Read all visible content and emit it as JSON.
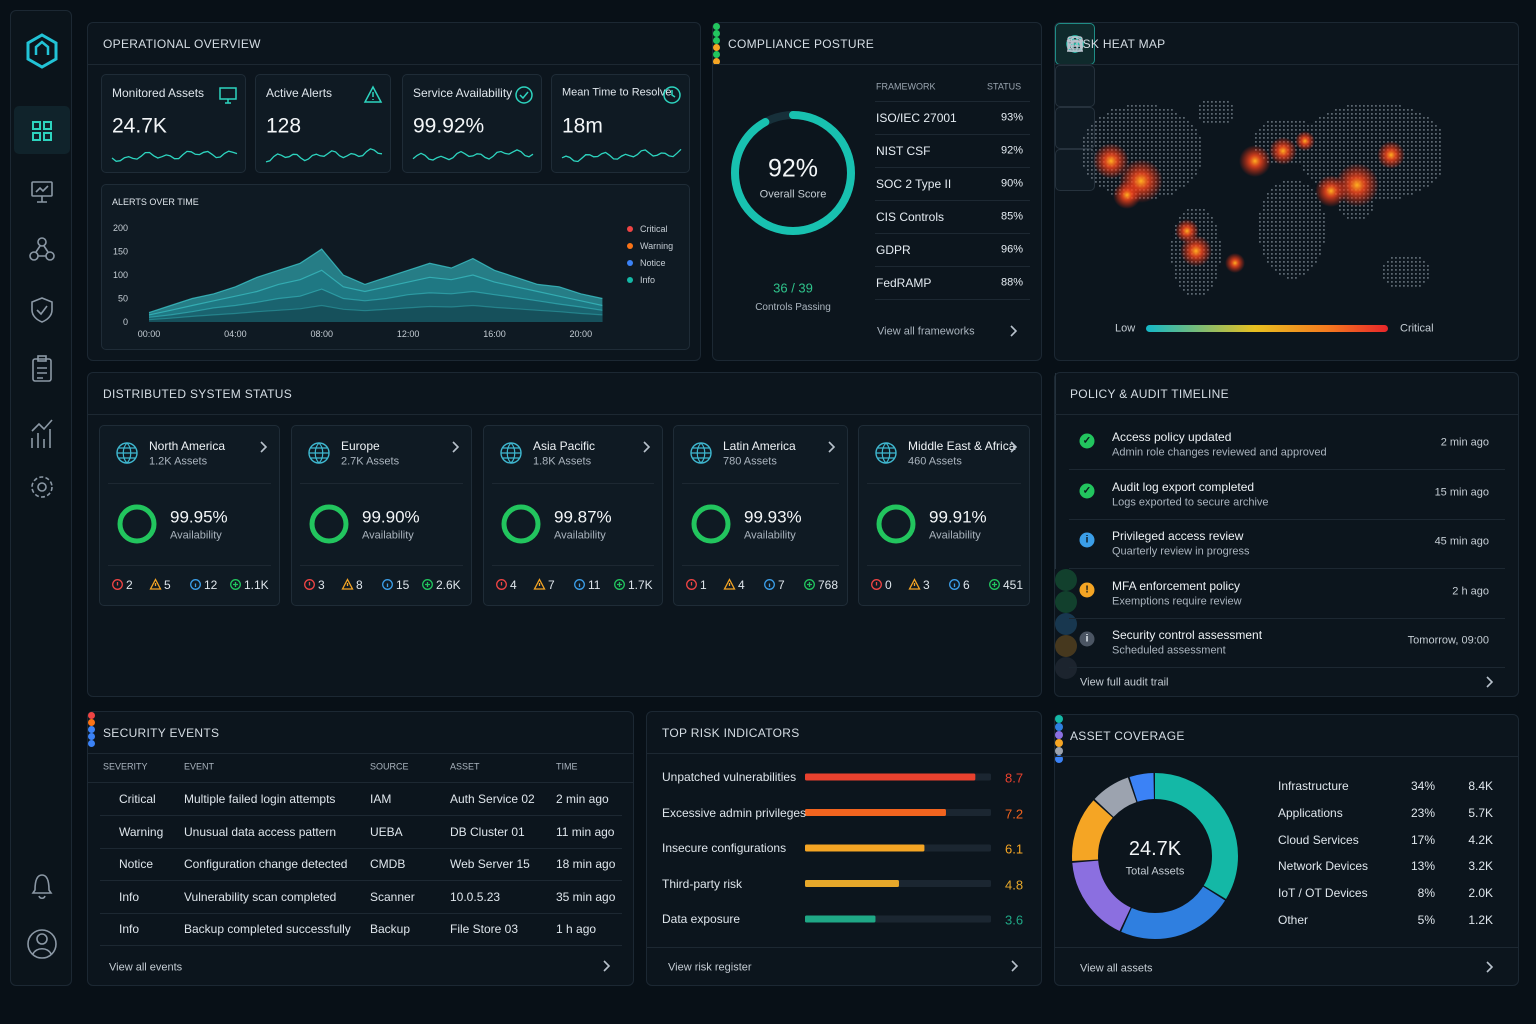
{
  "operational_overview": {
    "title": "OPERATIONAL OVERVIEW",
    "kpis": [
      {
        "label": "Monitored Assets",
        "value": "24.7K"
      },
      {
        "label": "Active Alerts",
        "value": "128"
      },
      {
        "label": "Service Availability",
        "value": "99.92%"
      },
      {
        "label": "Mean Time to Resolve",
        "value": "18m"
      }
    ],
    "alerts_chart": {
      "type": "area",
      "title": "ALERTS OVER TIME",
      "x": [
        0,
        1,
        2,
        3,
        4,
        5,
        6,
        7,
        8,
        9,
        10,
        11,
        12,
        13,
        14,
        15,
        16,
        17,
        18,
        19,
        20,
        21
      ],
      "xlim": [
        0,
        22
      ],
      "xticks": [
        {
          "value": 0,
          "label": "00:00"
        },
        {
          "value": 4,
          "label": "04:00"
        },
        {
          "value": 8,
          "label": "08:00"
        },
        {
          "value": 12,
          "label": "12:00"
        },
        {
          "value": 16,
          "label": "16:00"
        },
        {
          "value": 20,
          "label": "20:00"
        }
      ],
      "ylim": [
        0,
        200
      ],
      "yticks": [
        0,
        50,
        100,
        150,
        200
      ],
      "series": [
        {
          "name": "Critical",
          "color": "#ef4444",
          "fill": "#2a8f98",
          "values": [
            20,
            35,
            50,
            60,
            75,
            95,
            110,
            125,
            155,
            100,
            80,
            95,
            110,
            125,
            115,
            135,
            110,
            95,
            80,
            75,
            60,
            50
          ]
        },
        {
          "name": "Warning",
          "color": "#f97316",
          "fill": "#1f7782",
          "values": [
            15,
            25,
            35,
            45,
            55,
            65,
            80,
            90,
            110,
            75,
            65,
            75,
            85,
            95,
            90,
            100,
            85,
            75,
            65,
            55,
            45,
            35
          ]
        },
        {
          "name": "Notice",
          "color": "#3b82f6",
          "fill": "#1a5f6c",
          "values": [
            10,
            15,
            22,
            30,
            35,
            42,
            50,
            55,
            70,
            50,
            45,
            50,
            58,
            62,
            60,
            65,
            58,
            52,
            45,
            38,
            32,
            25
          ]
        },
        {
          "name": "Info",
          "color": "#14b8a6",
          "fill": "#164c58",
          "values": [
            5,
            8,
            12,
            15,
            18,
            22,
            25,
            28,
            35,
            27,
            24,
            27,
            30,
            33,
            32,
            35,
            31,
            28,
            25,
            22,
            18,
            15
          ]
        }
      ]
    }
  },
  "compliance": {
    "title": "COMPLIANCE POSTURE",
    "score": 92,
    "score_label": "92%",
    "score_caption": "Overall Score",
    "controls": "36 / 39",
    "controls_caption": "Controls Passing",
    "headers": [
      "FRAMEWORK",
      "STATUS"
    ],
    "frameworks": [
      {
        "name": "ISO/IEC 27001",
        "status": "93%",
        "color": "#22c55e"
      },
      {
        "name": "NIST CSF",
        "status": "92%",
        "color": "#22c55e"
      },
      {
        "name": "SOC 2 Type II",
        "status": "90%",
        "color": "#22c55e"
      },
      {
        "name": "CIS Controls",
        "status": "85%",
        "color": "#f5a524"
      },
      {
        "name": "GDPR",
        "status": "96%",
        "color": "#22c55e"
      },
      {
        "name": "FedRAMP",
        "status": "88%",
        "color": "#f5a524"
      }
    ],
    "link": "View all frameworks"
  },
  "risk_heat_map": {
    "title": "RISK HEAT MAP",
    "legend_low": "Low",
    "legend_high": "Critical"
  },
  "distributed_status": {
    "title": "DISTRIBUTED SYSTEM STATUS",
    "regions": [
      {
        "name": "North America",
        "assets": "1.2K Assets",
        "availability": {
          "value": 99.95,
          "label": "99.95%"
        },
        "caption": "Availability",
        "counts": {
          "critical": 2,
          "warning": 5,
          "info": 12,
          "healthy": "1.1K"
        }
      },
      {
        "name": "Europe",
        "assets": "2.7K Assets",
        "availability": {
          "value": 99.9,
          "label": "99.90%"
        },
        "caption": "Availability",
        "counts": {
          "critical": 3,
          "warning": 8,
          "info": 15,
          "healthy": "2.6K"
        }
      },
      {
        "name": "Asia Pacific",
        "assets": "1.8K Assets",
        "availability": {
          "value": 99.87,
          "label": "99.87%"
        },
        "caption": "Availability",
        "counts": {
          "critical": 4,
          "warning": 7,
          "info": 11,
          "healthy": "1.7K"
        }
      },
      {
        "name": "Latin America",
        "assets": "780 Assets",
        "availability": {
          "value": 99.93,
          "label": "99.93%"
        },
        "caption": "Availability",
        "counts": {
          "critical": 1,
          "warning": 4,
          "info": 7,
          "healthy": 768
        }
      },
      {
        "name": "Middle East & Africa",
        "assets": "460 Assets",
        "availability": {
          "value": 99.91,
          "label": "99.91%"
        },
        "caption": "Availability",
        "counts": {
          "critical": 0,
          "warning": 3,
          "info": 6,
          "healthy": 451
        }
      }
    ]
  },
  "policy_timeline": {
    "title": "POLICY & AUDIT TIMELINE",
    "items": [
      {
        "title": "Access policy updated",
        "detail": "Admin role changes reviewed and approved",
        "time": "2 min ago",
        "icon": "✓",
        "color": "#22c55e"
      },
      {
        "title": "Audit log export completed",
        "detail": "Logs exported to secure archive",
        "time": "15 min ago",
        "icon": "✓",
        "color": "#22c55e"
      },
      {
        "title": "Privileged access review",
        "detail": "Quarterly review in progress",
        "time": "45 min ago",
        "icon": "i",
        "color": "#3b9ee8"
      },
      {
        "title": "MFA enforcement policy",
        "detail": "Exemptions require review",
        "time": "2 h ago",
        "icon": "!",
        "color": "#f5a524"
      },
      {
        "title": "Security control assessment",
        "detail": "Scheduled assessment",
        "time": "Tomorrow, 09:00",
        "icon": "i",
        "color": "#4b5563"
      }
    ],
    "link": "View full audit trail"
  },
  "security_events": {
    "title": "SECURITY EVENTS",
    "headers": [
      "SEVERITY",
      "EVENT",
      "SOURCE",
      "ASSET",
      "TIME"
    ],
    "rows": [
      {
        "severity": "Critical",
        "color": "#ef4444",
        "event": "Multiple failed login attempts",
        "source": "IAM",
        "asset": "Auth Service 02",
        "time": "2 min ago"
      },
      {
        "severity": "Warning",
        "color": "#f97316",
        "event": "Unusual data access pattern",
        "source": "UEBA",
        "asset": "DB Cluster 01",
        "time": "11 min ago"
      },
      {
        "severity": "Notice",
        "color": "#3b82f6",
        "event": "Configuration change detected",
        "source": "CMDB",
        "asset": "Web Server 15",
        "time": "18 min ago"
      },
      {
        "severity": "Info",
        "color": "#3b82f6",
        "event": "Vulnerability scan completed",
        "source": "Scanner",
        "asset": "10.0.5.23",
        "time": "35 min ago"
      },
      {
        "severity": "Info",
        "color": "#3b82f6",
        "event": "Backup completed successfully",
        "source": "Backup",
        "asset": "File Store 03",
        "time": "1 h ago"
      }
    ],
    "link": "View all events"
  },
  "top_risk": {
    "type": "bar",
    "title": "TOP RISK INDICATORS",
    "categories": [
      "Unpatched vulnerabilities",
      "Excessive admin privileges",
      "Insecure configurations",
      "Third-party risk",
      "Data exposure"
    ],
    "values": [
      8.7,
      7.2,
      6.1,
      4.8,
      3.6
    ],
    "colors": [
      "#e8412e",
      "#f2641f",
      "#f5a524",
      "#e7a82a",
      "#1fa886"
    ],
    "xlim": [
      0,
      9.5
    ],
    "link": "View risk register"
  },
  "asset_coverage": {
    "type": "donut",
    "title": "ASSET COVERAGE",
    "total": "24.7K",
    "total_caption": "Total Assets",
    "categories": [
      "Infrastructure",
      "Applications",
      "Cloud Services",
      "Network Devices",
      "IoT / OT Devices",
      "Other"
    ],
    "values": [
      34,
      23,
      17,
      13,
      8,
      5
    ],
    "value_labels": [
      "34%",
      "23%",
      "17%",
      "13%",
      "8%",
      "5%"
    ],
    "counts": [
      "8.4K",
      "5.7K",
      "4.2K",
      "3.2K",
      "2.0K",
      "1.2K"
    ],
    "colors": [
      "#14b8a6",
      "#2f7fe0",
      "#8b6fe0",
      "#f5a524",
      "#9ca3af",
      "#3b82f6"
    ],
    "link": "View all assets"
  }
}
